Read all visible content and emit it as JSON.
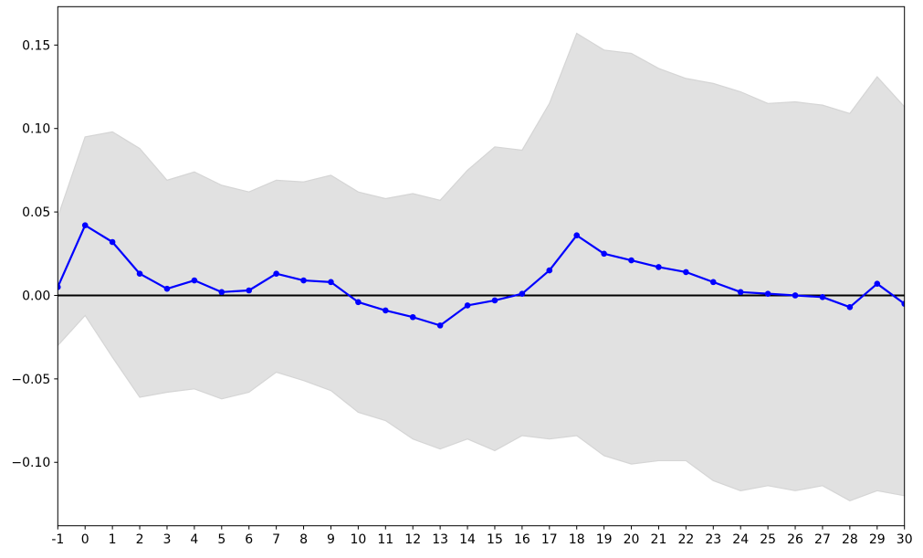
{
  "figure": {
    "background": "#ffffff"
  },
  "chart_data": {
    "type": "line",
    "title": "",
    "xlabel": "",
    "ylabel": "",
    "grid": false,
    "legend": null,
    "xlim": [
      -1,
      30
    ],
    "ylim": [
      -0.138,
      0.173
    ],
    "x": [
      -1,
      0,
      1,
      2,
      3,
      4,
      5,
      6,
      7,
      8,
      9,
      10,
      11,
      12,
      13,
      14,
      15,
      16,
      17,
      18,
      19,
      20,
      21,
      22,
      23,
      24,
      25,
      26,
      27,
      28,
      29,
      30
    ],
    "series": [
      {
        "name": "impulse_response",
        "role": "line-with-markers",
        "color": "#0000ff",
        "values": [
          0.005,
          0.042,
          0.032,
          0.013,
          0.004,
          0.009,
          0.002,
          0.003,
          0.013,
          0.009,
          0.008,
          -0.004,
          -0.009,
          -0.013,
          -0.018,
          -0.006,
          -0.003,
          0.001,
          0.015,
          0.036,
          0.025,
          0.021,
          0.017,
          0.014,
          0.008,
          0.002,
          0.001,
          0.0,
          -0.001,
          -0.007,
          0.007,
          -0.005
        ]
      },
      {
        "name": "confidence_band_upper",
        "role": "band-upper",
        "color": "#e1e1e1",
        "values": [
          0.047,
          0.095,
          0.098,
          0.088,
          0.069,
          0.074,
          0.066,
          0.062,
          0.069,
          0.068,
          0.072,
          0.062,
          0.058,
          0.061,
          0.057,
          0.075,
          0.089,
          0.087,
          0.115,
          0.157,
          0.147,
          0.145,
          0.136,
          0.13,
          0.127,
          0.122,
          0.115,
          0.116,
          0.114,
          0.109,
          0.131,
          0.113
        ]
      },
      {
        "name": "confidence_band_lower",
        "role": "band-lower",
        "color": "#e1e1e1",
        "values": [
          -0.03,
          -0.012,
          -0.037,
          -0.061,
          -0.058,
          -0.056,
          -0.062,
          -0.058,
          -0.046,
          -0.051,
          -0.057,
          -0.07,
          -0.075,
          -0.086,
          -0.092,
          -0.086,
          -0.093,
          -0.084,
          -0.086,
          -0.084,
          -0.096,
          -0.101,
          -0.099,
          -0.099,
          -0.111,
          -0.117,
          -0.114,
          -0.117,
          -0.114,
          -0.123,
          -0.117,
          -0.12
        ]
      }
    ],
    "zero_line": {
      "value": 0.0,
      "color": "#000000"
    },
    "x_ticks": [
      "-1",
      "0",
      "1",
      "2",
      "3",
      "4",
      "5",
      "6",
      "7",
      "8",
      "9",
      "10",
      "11",
      "12",
      "13",
      "14",
      "15",
      "16",
      "17",
      "18",
      "19",
      "20",
      "21",
      "22",
      "23",
      "24",
      "25",
      "26",
      "27",
      "28",
      "29",
      "30"
    ],
    "y_ticks": [
      {
        "value": -0.1,
        "label": "−0.10"
      },
      {
        "value": -0.05,
        "label": "−0.05"
      },
      {
        "value": 0.0,
        "label": "0.00"
      },
      {
        "value": 0.05,
        "label": "0.05"
      },
      {
        "value": 0.1,
        "label": "0.10"
      },
      {
        "value": 0.15,
        "label": "0.15"
      }
    ],
    "colors": {
      "line": "#0000ff",
      "band_fill": "#e1e1e1",
      "band_edge": "#d5d5d5",
      "zero_line": "#000000",
      "axis": "#000000",
      "background": "#ffffff"
    }
  }
}
